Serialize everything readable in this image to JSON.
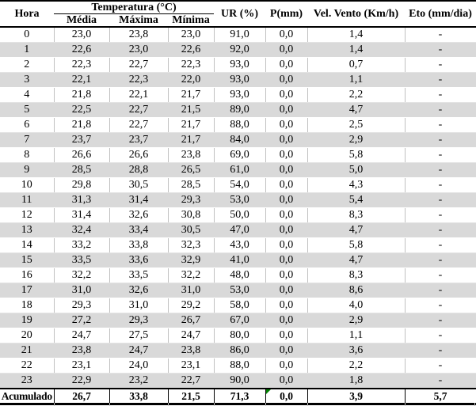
{
  "table": {
    "header": {
      "hora": "Hora",
      "temperatura_group": "Temperatura (°C)",
      "sub": [
        "Média",
        "Máxima",
        "Mínima"
      ],
      "ur": "UR (%)",
      "p": "P(mm)",
      "vento": "Vel. Vento (Km/h)",
      "eto": "Eto (mm/dia)"
    },
    "rows": [
      [
        "0",
        "23,0",
        "23,8",
        "23,0",
        "91,0",
        "0,0",
        "1,4",
        "-"
      ],
      [
        "1",
        "22,6",
        "23,0",
        "22,6",
        "92,0",
        "0,0",
        "1,4",
        "-"
      ],
      [
        "2",
        "22,3",
        "22,7",
        "22,3",
        "93,0",
        "0,0",
        "0,7",
        "-"
      ],
      [
        "3",
        "22,1",
        "22,3",
        "22,0",
        "93,0",
        "0,0",
        "1,1",
        "-"
      ],
      [
        "4",
        "21,8",
        "22,1",
        "21,7",
        "93,0",
        "0,0",
        "2,2",
        "-"
      ],
      [
        "5",
        "22,5",
        "22,7",
        "21,5",
        "89,0",
        "0,0",
        "4,7",
        "-"
      ],
      [
        "6",
        "21,8",
        "22,7",
        "21,7",
        "88,0",
        "0,0",
        "2,5",
        "-"
      ],
      [
        "7",
        "23,7",
        "23,7",
        "21,7",
        "84,0",
        "0,0",
        "2,9",
        "-"
      ],
      [
        "8",
        "26,6",
        "26,6",
        "23,8",
        "69,0",
        "0,0",
        "5,8",
        "-"
      ],
      [
        "9",
        "28,5",
        "28,8",
        "26,5",
        "61,0",
        "0,0",
        "5,0",
        "-"
      ],
      [
        "10",
        "29,8",
        "30,5",
        "28,5",
        "54,0",
        "0,0",
        "4,3",
        "-"
      ],
      [
        "11",
        "31,3",
        "31,4",
        "29,3",
        "53,0",
        "0,0",
        "5,4",
        "-"
      ],
      [
        "12",
        "31,4",
        "32,6",
        "30,8",
        "50,0",
        "0,0",
        "8,3",
        "-"
      ],
      [
        "13",
        "32,4",
        "33,4",
        "30,5",
        "47,0",
        "0,0",
        "4,7",
        "-"
      ],
      [
        "14",
        "33,2",
        "33,8",
        "32,3",
        "43,0",
        "0,0",
        "5,8",
        "-"
      ],
      [
        "15",
        "33,5",
        "33,6",
        "32,9",
        "41,0",
        "0,0",
        "4,7",
        "-"
      ],
      [
        "16",
        "32,2",
        "33,5",
        "32,2",
        "48,0",
        "0,0",
        "8,3",
        "-"
      ],
      [
        "17",
        "31,0",
        "32,6",
        "31,0",
        "53,0",
        "0,0",
        "8,6",
        "-"
      ],
      [
        "18",
        "29,3",
        "31,0",
        "29,2",
        "58,0",
        "0,0",
        "4,0",
        "-"
      ],
      [
        "19",
        "27,2",
        "29,3",
        "26,7",
        "67,0",
        "0,0",
        "2,9",
        "-"
      ],
      [
        "20",
        "24,7",
        "27,5",
        "24,7",
        "80,0",
        "0,0",
        "1,1",
        "-"
      ],
      [
        "21",
        "23,8",
        "24,7",
        "23,8",
        "86,0",
        "0,0",
        "3,6",
        "-"
      ],
      [
        "22",
        "23,1",
        "24,0",
        "23,1",
        "88,0",
        "0,0",
        "2,2",
        "-"
      ],
      [
        "23",
        "22,9",
        "23,2",
        "22,7",
        "90,0",
        "0,0",
        "1,8",
        "-"
      ]
    ],
    "footer": [
      "Acumulado",
      "26,7",
      "33,8",
      "21,5",
      "71,3",
      "0,0",
      "3,9",
      "5,7"
    ],
    "colors": {
      "stripe": "#d9d9d9",
      "gridline": "#c0c0c0",
      "rule": "#000000",
      "error_indicator": "#008000"
    }
  },
  "chart_data": {
    "type": "table",
    "title": "",
    "columns": [
      "Hora",
      "Temperatura (°C) Média",
      "Temperatura (°C) Máxima",
      "Temperatura (°C) Mínima",
      "UR (%)",
      "P(mm)",
      "Vel. Vento (Km/h)",
      "Eto (mm/dia)"
    ],
    "rows": [
      [
        0,
        23.0,
        23.8,
        23.0,
        91.0,
        0.0,
        1.4,
        null
      ],
      [
        1,
        22.6,
        23.0,
        22.6,
        92.0,
        0.0,
        1.4,
        null
      ],
      [
        2,
        22.3,
        22.7,
        22.3,
        93.0,
        0.0,
        0.7,
        null
      ],
      [
        3,
        22.1,
        22.3,
        22.0,
        93.0,
        0.0,
        1.1,
        null
      ],
      [
        4,
        21.8,
        22.1,
        21.7,
        93.0,
        0.0,
        2.2,
        null
      ],
      [
        5,
        22.5,
        22.7,
        21.5,
        89.0,
        0.0,
        4.7,
        null
      ],
      [
        6,
        21.8,
        22.7,
        21.7,
        88.0,
        0.0,
        2.5,
        null
      ],
      [
        7,
        23.7,
        23.7,
        21.7,
        84.0,
        0.0,
        2.9,
        null
      ],
      [
        8,
        26.6,
        26.6,
        23.8,
        69.0,
        0.0,
        5.8,
        null
      ],
      [
        9,
        28.5,
        28.8,
        26.5,
        61.0,
        0.0,
        5.0,
        null
      ],
      [
        10,
        29.8,
        30.5,
        28.5,
        54.0,
        0.0,
        4.3,
        null
      ],
      [
        11,
        31.3,
        31.4,
        29.3,
        53.0,
        0.0,
        5.4,
        null
      ],
      [
        12,
        31.4,
        32.6,
        30.8,
        50.0,
        0.0,
        8.3,
        null
      ],
      [
        13,
        32.4,
        33.4,
        30.5,
        47.0,
        0.0,
        4.7,
        null
      ],
      [
        14,
        33.2,
        33.8,
        32.3,
        43.0,
        0.0,
        5.8,
        null
      ],
      [
        15,
        33.5,
        33.6,
        32.9,
        41.0,
        0.0,
        4.7,
        null
      ],
      [
        16,
        32.2,
        33.5,
        32.2,
        48.0,
        0.0,
        8.3,
        null
      ],
      [
        17,
        31.0,
        32.6,
        31.0,
        53.0,
        0.0,
        8.6,
        null
      ],
      [
        18,
        29.3,
        31.0,
        29.2,
        58.0,
        0.0,
        4.0,
        null
      ],
      [
        19,
        27.2,
        29.3,
        26.7,
        67.0,
        0.0,
        2.9,
        null
      ],
      [
        20,
        24.7,
        27.5,
        24.7,
        80.0,
        0.0,
        1.1,
        null
      ],
      [
        21,
        23.8,
        24.7,
        23.8,
        86.0,
        0.0,
        3.6,
        null
      ],
      [
        22,
        23.1,
        24.0,
        23.1,
        88.0,
        0.0,
        2.2,
        null
      ],
      [
        23,
        22.9,
        23.2,
        22.7,
        90.0,
        0.0,
        1.8,
        null
      ]
    ],
    "footer_row": [
      "Acumulado",
      26.7,
      33.8,
      21.5,
      71.3,
      0.0,
      3.9,
      5.7
    ],
    "layout_hints": {
      "striped_rows": "odd hours shaded",
      "grid": "light vertical gridlines",
      "footer": "bold between heavy rules"
    }
  }
}
